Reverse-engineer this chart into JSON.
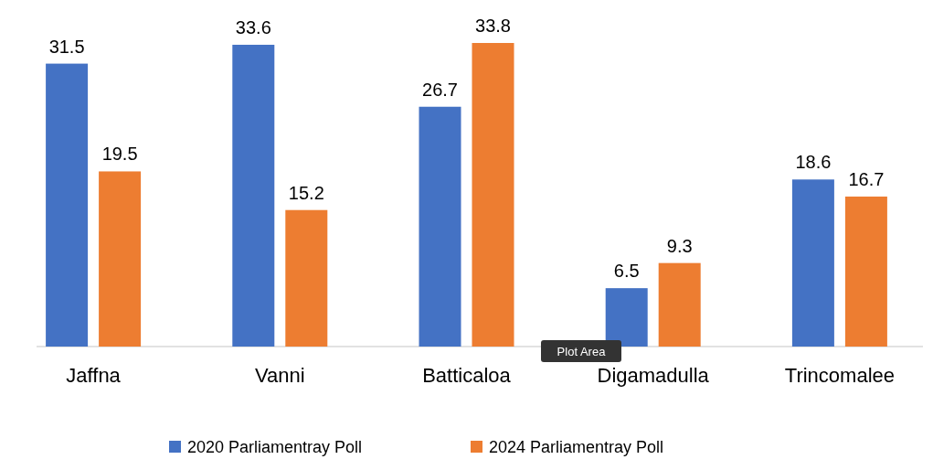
{
  "chart_data": {
    "type": "bar",
    "categories": [
      "Jaffna",
      "Vanni",
      "Batticaloa",
      "Digamadulla",
      "Trincomalee"
    ],
    "series": [
      {
        "name": "2020 Parliamentray Poll",
        "color": "#4472c4",
        "values": [
          31.5,
          33.6,
          26.7,
          6.5,
          18.6
        ]
      },
      {
        "name": "2024 Parliamentray Poll",
        "color": "#ed7d31",
        "values": [
          19.5,
          15.2,
          33.8,
          9.3,
          16.7
        ]
      }
    ],
    "relative": false,
    "data_labels": true,
    "legend": "bottom",
    "annotations": [
      "Plot Area"
    ]
  }
}
